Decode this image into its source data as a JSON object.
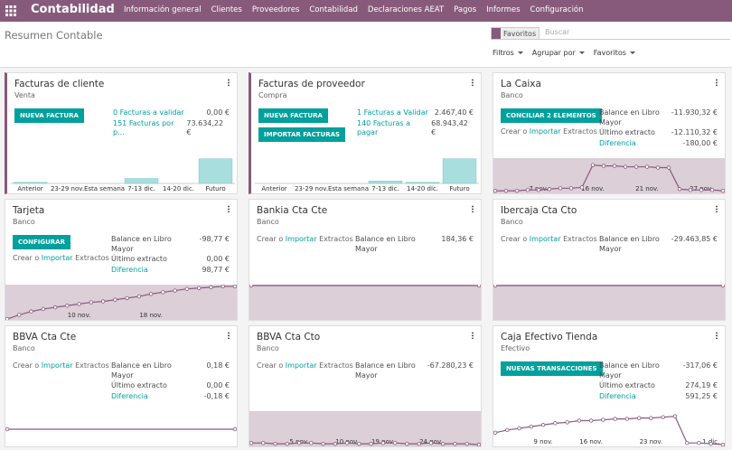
{
  "navbar": {
    "app": "Contabilidad",
    "menu": [
      "Información general",
      "Clientes",
      "Proveedores",
      "Contabilidad",
      "Declaraciones AEAT",
      "Pagos",
      "Informes",
      "Configuración"
    ]
  },
  "control_panel": {
    "breadcrumb": "Resumen Contable",
    "facet": "Favoritos",
    "search_placeholder": "Buscar",
    "filters": "Filtros",
    "group_by": "Agrupar por",
    "favorites": "Favoritos"
  },
  "cards": [
    {
      "title": "Facturas de cliente",
      "subtitle": "Venta",
      "accent": true,
      "buttons": [
        "NUEVA FACTURA"
      ],
      "links": [
        {
          "label": "0 Facturas a validar",
          "value": "0,00 €"
        },
        {
          "label": "151 Facturas por p...",
          "value": "73.634,22 €"
        }
      ],
      "chart": {
        "type": "bar",
        "categories": [
          "Anterior",
          "23-29 nov.",
          "Esta semana",
          "7-13 dic.",
          "14-20 dic.",
          "Futuro"
        ],
        "values": [
          1,
          0,
          0,
          4,
          0,
          20
        ],
        "ylim": [
          0,
          22
        ],
        "color": "#a8dedd"
      }
    },
    {
      "title": "Facturas de proveedor",
      "subtitle": "Compra",
      "accent": true,
      "buttons": [
        "NUEVA FACTURA",
        "IMPORTAR FACTURAS"
      ],
      "links": [
        {
          "label": "1 Facturas a Validar",
          "value": "2.467,40 €"
        },
        {
          "label": "140 Facturas a pagar",
          "value": "68.943,42 €"
        }
      ],
      "chart": {
        "type": "bar",
        "categories": [
          "Anterior",
          "23-29 nov.",
          "Esta semana",
          "7-13 dic.",
          "14-20 dic.",
          "Futuro"
        ],
        "values": [
          0,
          0,
          0,
          2,
          1,
          20
        ],
        "ylim": [
          0,
          22
        ],
        "color": "#a8dedd"
      }
    },
    {
      "title": "La Caixa",
      "subtitle": "Banco",
      "buttons": [
        "CONCILIAR 2 ELEMENTOS"
      ],
      "create_import": [
        "Crear o",
        "Importar",
        "Extractos"
      ],
      "stats": [
        {
          "label": "Balance en Libro Mayor",
          "value": "-11.930,32 €"
        },
        {
          "label": "Último extracto",
          "value": "-12.110,32 €"
        },
        {
          "label": "Diferencia",
          "value": "-180,00 €",
          "link": true
        }
      ],
      "chart": {
        "type": "line",
        "band": true,
        "categories": [
          null,
          null,
          null,
          null,
          "7 nov.",
          null,
          null,
          null,
          null,
          "16 nov.",
          null,
          null,
          null,
          null,
          "21 nov.",
          null,
          null,
          null,
          null,
          "27 nov.",
          null,
          null
        ],
        "values": [
          3,
          3,
          3,
          4,
          4,
          5,
          6,
          6,
          7,
          33,
          32,
          32,
          31,
          31,
          31,
          30,
          30,
          5,
          4,
          4,
          4,
          3
        ],
        "ylim": [
          0,
          40
        ],
        "color": "#875a7b"
      }
    },
    {
      "title": "Tarjeta",
      "subtitle": "Banco",
      "buttons": [
        "CONFIGURAR"
      ],
      "create_import": [
        "Crear o",
        "Importar",
        "Extractos"
      ],
      "stats": [
        {
          "label": "Balance en Libro Mayor",
          "value": "-98,77 €"
        },
        {
          "label": "Último extracto",
          "value": "0,00 €"
        },
        {
          "label": "Diferencia",
          "value": "98,77 €",
          "link": true
        }
      ],
      "chart": {
        "type": "line",
        "band": true,
        "categories": [
          null,
          null,
          null,
          null,
          null,
          null,
          "10 nov.",
          null,
          null,
          null,
          null,
          null,
          "18 nov.",
          null,
          null,
          null,
          null,
          null,
          null,
          null
        ],
        "values": [
          1,
          6,
          10,
          13,
          15,
          17,
          19,
          21,
          22,
          24,
          26,
          28,
          31,
          33,
          35,
          37,
          38,
          39,
          40,
          40
        ],
        "ylim": [
          0,
          41
        ],
        "color": "#875a7b"
      }
    },
    {
      "title": "Bankia Cta Cte",
      "subtitle": "Banco",
      "create_import": [
        "Crear o",
        "Importar",
        "Extractos"
      ],
      "stats": [
        {
          "label": "Balance en Libro Mayor",
          "value": "184,36 €"
        }
      ],
      "chart": {
        "type": "line",
        "band": true,
        "categories": [
          null,
          null
        ],
        "values": [
          40,
          40
        ],
        "ylim": [
          0,
          40
        ],
        "color": "#875a7b"
      }
    },
    {
      "title": "Ibercaja Cta Cto",
      "subtitle": "Banco",
      "create_import": [
        "Crear o",
        "Importar",
        "Extractos"
      ],
      "stats": [
        {
          "label": "Balance en Libro Mayor",
          "value": "-29.463,85 €"
        }
      ],
      "chart": {
        "type": "line",
        "band": true,
        "categories": [
          null,
          null
        ],
        "values": [
          40,
          40
        ],
        "ylim": [
          0,
          40
        ],
        "color": "#875a7b"
      }
    },
    {
      "title": "BBVA Cta Cte",
      "subtitle": "Banco",
      "create_import": [
        "Crear o",
        "Importar",
        "Extractos"
      ],
      "stats": [
        {
          "label": "Balance en Libro Mayor",
          "value": "0,18 €"
        },
        {
          "label": "Último extracto",
          "value": "0,00 €"
        },
        {
          "label": "Diferencia",
          "value": "-0,18 €",
          "link": true
        }
      ],
      "chart": {
        "type": "line",
        "band": false,
        "categories": [
          null,
          null
        ],
        "values": [
          20,
          20
        ],
        "ylim": [
          0,
          40
        ],
        "color": "#875a7b"
      }
    },
    {
      "title": "BBVA Cta Cto",
      "subtitle": "Banco",
      "create_import": [
        "Crear o",
        "Importar",
        "Extractos"
      ],
      "stats": [
        {
          "label": "Balance en Libro Mayor",
          "value": "-67.280,23 €"
        }
      ],
      "chart": {
        "type": "line",
        "band": true,
        "categories": [
          null,
          null,
          null,
          null,
          "5 nov.",
          null,
          null,
          null,
          "10 nov.",
          null,
          null,
          "19 nov.",
          null,
          null,
          null,
          "24 nov.",
          null,
          null,
          null,
          null
        ],
        "values": [
          4,
          4,
          3,
          3,
          4,
          4,
          3,
          3,
          4,
          3,
          3,
          4,
          4,
          3,
          3,
          4,
          3,
          3,
          3,
          2
        ],
        "ylim": [
          0,
          40
        ],
        "color": "#875a7b"
      }
    },
    {
      "title": "Caja Efectivo Tienda",
      "subtitle": "Efectivo",
      "buttons": [
        "NUEVAS TRANSACCIONES"
      ],
      "stats": [
        {
          "label": "Balance en Libro Mayor",
          "value": "-317,06 €"
        },
        {
          "label": "Último extracto",
          "value": "274,19 €"
        },
        {
          "label": "Diferencia",
          "value": "591,25 €",
          "link": true
        }
      ],
      "chart": {
        "type": "line",
        "band": false,
        "categories": [
          null,
          null,
          null,
          null,
          "9 nov.",
          null,
          null,
          null,
          "16 nov.",
          null,
          null,
          null,
          null,
          "23 nov.",
          null,
          null,
          null,
          null,
          "1 dic.",
          null
        ],
        "values": [
          16,
          19,
          21,
          23,
          25,
          27,
          28,
          30,
          30,
          31,
          32,
          32,
          33,
          33,
          34,
          35,
          4,
          4,
          3,
          2
        ],
        "ylim": [
          0,
          40
        ],
        "color": "#875a7b"
      }
    }
  ]
}
